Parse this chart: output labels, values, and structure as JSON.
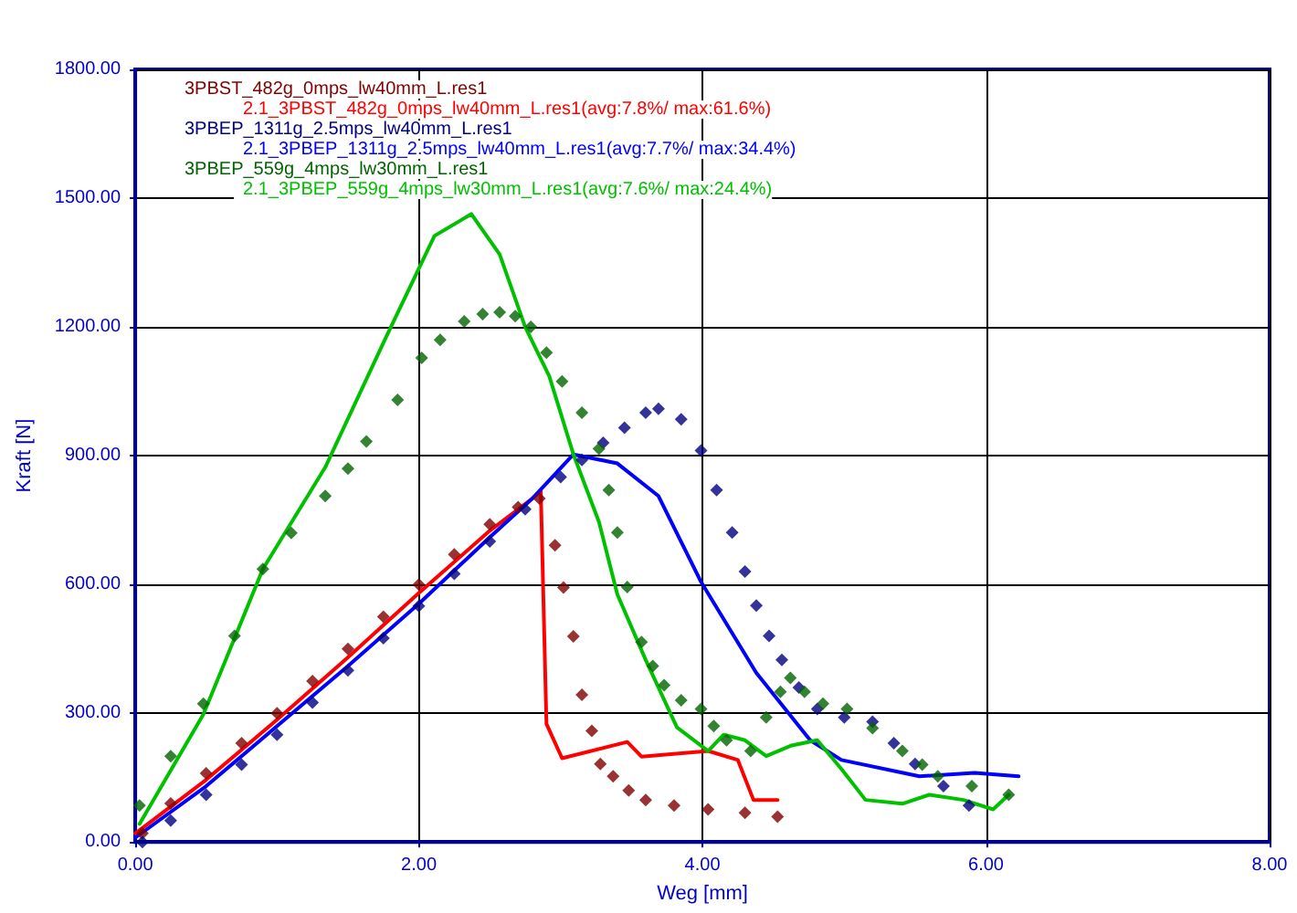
{
  "chart_data": {
    "type": "line",
    "xlabel": "Weg [mm]",
    "ylabel": "Kraft [N]",
    "xlim": [
      0,
      8
    ],
    "xticks": [
      {
        "value": 0,
        "label": "0.00"
      },
      {
        "value": 2,
        "label": "2.00"
      },
      {
        "value": 4,
        "label": "4.00"
      },
      {
        "value": 6,
        "label": "6.00"
      },
      {
        "value": 8,
        "label": "8.00"
      }
    ],
    "ylim": [
      0,
      1800
    ],
    "yticks": [
      {
        "value": 0,
        "label": "0.00"
      },
      {
        "value": 300,
        "label": "300.00"
      },
      {
        "value": 600,
        "label": "600.00"
      },
      {
        "value": 900,
        "label": "900.00"
      },
      {
        "value": 1200,
        "label": "1200.00"
      },
      {
        "value": 1500,
        "label": "1500.00"
      },
      {
        "value": 1800,
        "label": "1800.00"
      }
    ],
    "grid": true,
    "legend": "top left",
    "series": [
      {
        "name": "3PBST_482g_0mps_lw40mm_L.res1",
        "type": "scatter",
        "marker": "diamond",
        "color": "#800000",
        "x": [
          0.05,
          0.25,
          0.5,
          0.75,
          1.0,
          1.25,
          1.5,
          1.75,
          2.0,
          2.25,
          2.5,
          2.7,
          2.85,
          2.96,
          3.02,
          3.09,
          3.15,
          3.22,
          3.28,
          3.37,
          3.48,
          3.6,
          3.8,
          4.04,
          4.3,
          4.53
        ],
        "values": [
          20,
          90,
          160,
          230,
          300,
          375,
          450,
          525,
          600,
          670,
          740,
          780,
          800,
          691,
          593,
          479,
          343,
          259,
          182,
          153,
          120,
          98,
          85,
          76,
          68,
          59
        ]
      },
      {
        "name": "2.1_3PBST_482g_0mps_lw40mm_L.res1(avg:7.8%/ max:61.6%)",
        "marker": "none",
        "color": "#ff0000",
        "x": [
          0.0,
          0.5,
          1.0,
          1.5,
          2.0,
          2.5,
          2.8,
          2.86,
          2.9,
          3.01,
          3.47,
          3.57,
          4.04,
          4.25,
          4.36,
          4.53
        ],
        "values": [
          20,
          145,
          285,
          430,
          580,
          725,
          800,
          818,
          275,
          195,
          233,
          199,
          212,
          191,
          98,
          98
        ]
      },
      {
        "name": "3PBEP_1311g_2.5mps_lw40mm_L.res1",
        "type": "scatter",
        "marker": "diamond",
        "color": "#000080",
        "x": [
          0.05,
          0.25,
          0.5,
          0.75,
          1.0,
          1.25,
          1.5,
          1.75,
          2.0,
          2.25,
          2.5,
          2.75,
          3.0,
          3.15,
          3.3,
          3.45,
          3.6,
          3.69,
          3.85,
          3.99,
          4.1,
          4.21,
          4.3,
          4.38,
          4.47,
          4.56,
          4.68,
          4.81,
          5.0,
          5.2,
          5.35,
          5.5,
          5.7,
          5.88
        ],
        "values": [
          0,
          50,
          110,
          180,
          250,
          325,
          400,
          475,
          550,
          625,
          700,
          775,
          850,
          890,
          930,
          965,
          1000,
          1009,
          985,
          912,
          820,
          721,
          630,
          551,
          480,
          424,
          360,
          310,
          290,
          280,
          230,
          182,
          130,
          85
        ]
      },
      {
        "name": "2.1_3PBEP_1311g_2.5mps_lw40mm_L.res1(avg:7.7%/ max:34.4%)",
        "marker": "none",
        "color": "#0000ff",
        "x": [
          0.0,
          0.5,
          1.0,
          1.5,
          2.0,
          2.5,
          2.8,
          3.09,
          3.4,
          3.69,
          3.99,
          4.38,
          4.76,
          4.98,
          5.53,
          5.92,
          6.23
        ],
        "values": [
          10,
          130,
          270,
          410,
          555,
          710,
          800,
          903,
          882,
          806,
          606,
          394,
          237,
          191,
          153,
          161,
          153
        ]
      },
      {
        "name": "3PBEP_559g_4mps_lw30mm_L.res1",
        "type": "scatter",
        "marker": "diamond",
        "color": "#006400",
        "x": [
          0.03,
          0.25,
          0.48,
          0.7,
          0.9,
          1.1,
          1.34,
          1.5,
          1.63,
          1.85,
          2.02,
          2.15,
          2.32,
          2.45,
          2.57,
          2.68,
          2.79,
          2.9,
          3.01,
          3.15,
          3.27,
          3.34,
          3.4,
          3.47,
          3.57,
          3.65,
          3.73,
          3.85,
          3.99,
          4.08,
          4.17,
          4.34,
          4.45,
          4.55,
          4.62,
          4.72,
          4.85,
          5.02,
          5.2,
          5.41,
          5.55,
          5.66,
          5.9,
          6.16
        ],
        "values": [
          85,
          200,
          322,
          480,
          636,
          720,
          806,
          870,
          933,
          1030,
          1128,
          1170,
          1213,
          1230,
          1234,
          1225,
          1200,
          1140,
          1073,
          1000,
          916,
          820,
          721,
          594,
          466,
          410,
          365,
          330,
          310,
          270,
          237,
          212,
          290,
          350,
          382,
          350,
          322,
          310,
          265,
          212,
          180,
          153,
          130,
          110
        ]
      },
      {
        "name": "2.1_3PBEP_559g_4mps_lw30mm_L.res1(avg:7.6%/ max:24.4%)",
        "marker": "none",
        "color": "#00c000",
        "x": [
          0.03,
          0.48,
          0.9,
          1.34,
          1.76,
          2.11,
          2.37,
          2.57,
          2.75,
          2.92,
          3.09,
          3.27,
          3.4,
          3.6,
          3.82,
          4.04,
          4.15,
          4.3,
          4.45,
          4.63,
          4.81,
          4.98,
          5.15,
          5.41,
          5.6,
          5.84,
          6.05,
          6.16
        ],
        "values": [
          42,
          297,
          636,
          873,
          1170,
          1412,
          1463,
          1369,
          1200,
          1085,
          903,
          746,
          577,
          424,
          267,
          212,
          250,
          237,
          200,
          225,
          237,
          170,
          98,
          89,
          110,
          98,
          76,
          110
        ]
      }
    ]
  }
}
